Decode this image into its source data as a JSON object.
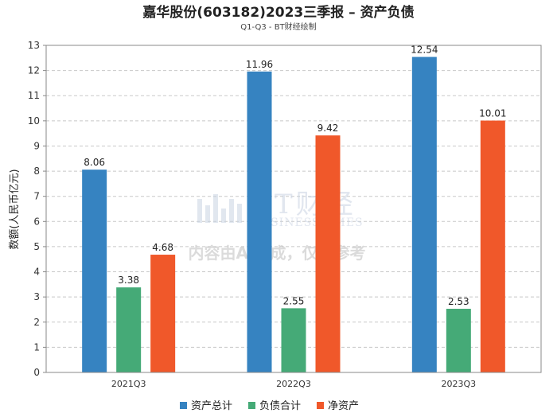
{
  "chart_data": {
    "type": "bar",
    "title": "嘉华股份(603182)2023三季报 – 资产负债",
    "subtitle": "Q1-Q3 - BT财经绘制",
    "xlabel": "",
    "ylabel": "数额(人民币亿元)",
    "ylim": [
      0,
      13
    ],
    "yticks": [
      0,
      1,
      2,
      3,
      4,
      5,
      6,
      7,
      8,
      9,
      10,
      11,
      12,
      13
    ],
    "grid": true,
    "legend_position": "bottom-center",
    "categories": [
      "2021Q3",
      "2022Q3",
      "2023Q3"
    ],
    "series": [
      {
        "name": "资产总计",
        "color": "#3683c1",
        "values": [
          8.06,
          11.96,
          12.54
        ],
        "labels": [
          "8.06",
          "11.96",
          "12.54"
        ]
      },
      {
        "name": "负债合计",
        "color": "#45aa77",
        "values": [
          3.38,
          2.55,
          2.53
        ],
        "labels": [
          "3.38",
          "2.55",
          "2.53"
        ]
      },
      {
        "name": "净资产",
        "color": "#f0582a",
        "values": [
          4.68,
          9.42,
          10.01
        ],
        "labels": [
          "4.68",
          "9.42",
          "10.01"
        ]
      }
    ]
  },
  "watermark": {
    "brand": "BT财经",
    "brand_sub": "BUSINESSTIMES",
    "notice": "内容由AI生成，仅供参考"
  }
}
